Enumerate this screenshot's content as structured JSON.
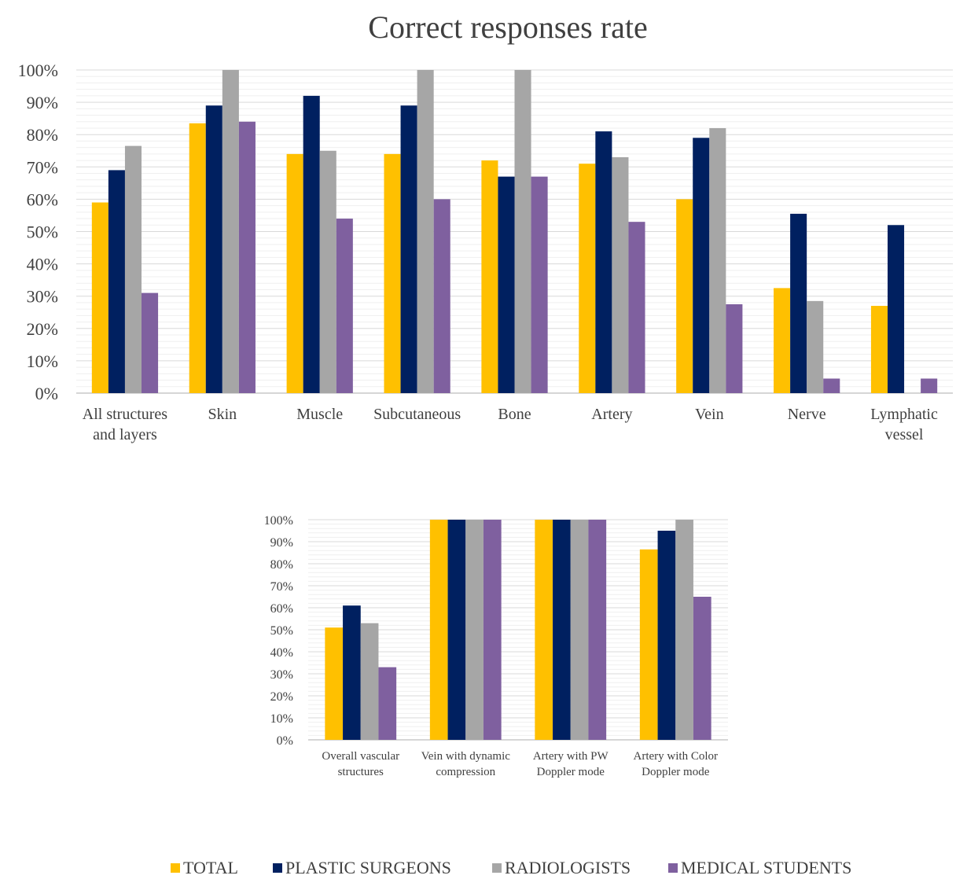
{
  "title": "Correct responses rate",
  "colors": {
    "total": "#FFC000",
    "plastic_surgeons": "#002060",
    "radiologists": "#A6A6A6",
    "medical_students": "#7F609F",
    "grid": "#D9D9D9",
    "text": "#404040"
  },
  "legend": [
    {
      "label": "TOTAL",
      "color": "#FFC000"
    },
    {
      "label": "PLASTIC SURGEONS",
      "color": "#002060"
    },
    {
      "label": "RADIOLOGISTS",
      "color": "#A6A6A6"
    },
    {
      "label": "MEDICAL STUDENTS",
      "color": "#7F609F"
    }
  ],
  "chart_data": [
    {
      "type": "bar",
      "title": "Correct responses rate",
      "xlabel": "",
      "ylabel": "",
      "ylim": [
        0,
        100
      ],
      "y_ticks": [
        "0%",
        "10%",
        "20%",
        "30%",
        "40%",
        "50%",
        "60%",
        "70%",
        "80%",
        "90%",
        "100%"
      ],
      "grid": true,
      "legend_position": "bottom",
      "categories": [
        [
          "All structures",
          "and layers"
        ],
        [
          "Skin"
        ],
        [
          "Muscle"
        ],
        [
          "Subcutaneous"
        ],
        [
          "Bone"
        ],
        [
          "Artery"
        ],
        [
          "Vein"
        ],
        [
          "Nerve"
        ],
        [
          "Lymphatic",
          "vessel"
        ]
      ],
      "series": [
        {
          "name": "TOTAL",
          "color": "#FFC000",
          "values": [
            59,
            83.5,
            74,
            74,
            72,
            71,
            60,
            32.5,
            27
          ]
        },
        {
          "name": "PLASTIC SURGEONS",
          "color": "#002060",
          "values": [
            69,
            89,
            92,
            89,
            67,
            81,
            79,
            55.5,
            52
          ]
        },
        {
          "name": "RADIOLOGISTS",
          "color": "#A6A6A6",
          "values": [
            76.5,
            100,
            75,
            100,
            100,
            73,
            82,
            28.5,
            0
          ]
        },
        {
          "name": "MEDICAL STUDENTS",
          "color": "#7F609F",
          "values": [
            31,
            84,
            54,
            60,
            67,
            53,
            27.5,
            4.5,
            4.5
          ]
        }
      ]
    },
    {
      "type": "bar",
      "title": "",
      "xlabel": "",
      "ylabel": "",
      "ylim": [
        0,
        100
      ],
      "y_ticks": [
        "0%",
        "10%",
        "20%",
        "30%",
        "40%",
        "50%",
        "60%",
        "70%",
        "80%",
        "90%",
        "100%"
      ],
      "grid": true,
      "legend_position": "bottom",
      "categories": [
        [
          "Overall vascular",
          "structures"
        ],
        [
          "Vein with dynamic",
          "compression"
        ],
        [
          "Artery with PW",
          "Doppler mode"
        ],
        [
          "Artery with Color",
          "Doppler mode"
        ]
      ],
      "series": [
        {
          "name": "TOTAL",
          "color": "#FFC000",
          "values": [
            51,
            100,
            100,
            86.5
          ]
        },
        {
          "name": "PLASTIC SURGEONS",
          "color": "#002060",
          "values": [
            61,
            100,
            100,
            95
          ]
        },
        {
          "name": "RADIOLOGISTS",
          "color": "#A6A6A6",
          "values": [
            53,
            100,
            100,
            100
          ]
        },
        {
          "name": "MEDICAL STUDENTS",
          "color": "#7F609F",
          "values": [
            33,
            100,
            100,
            65
          ]
        }
      ]
    }
  ]
}
